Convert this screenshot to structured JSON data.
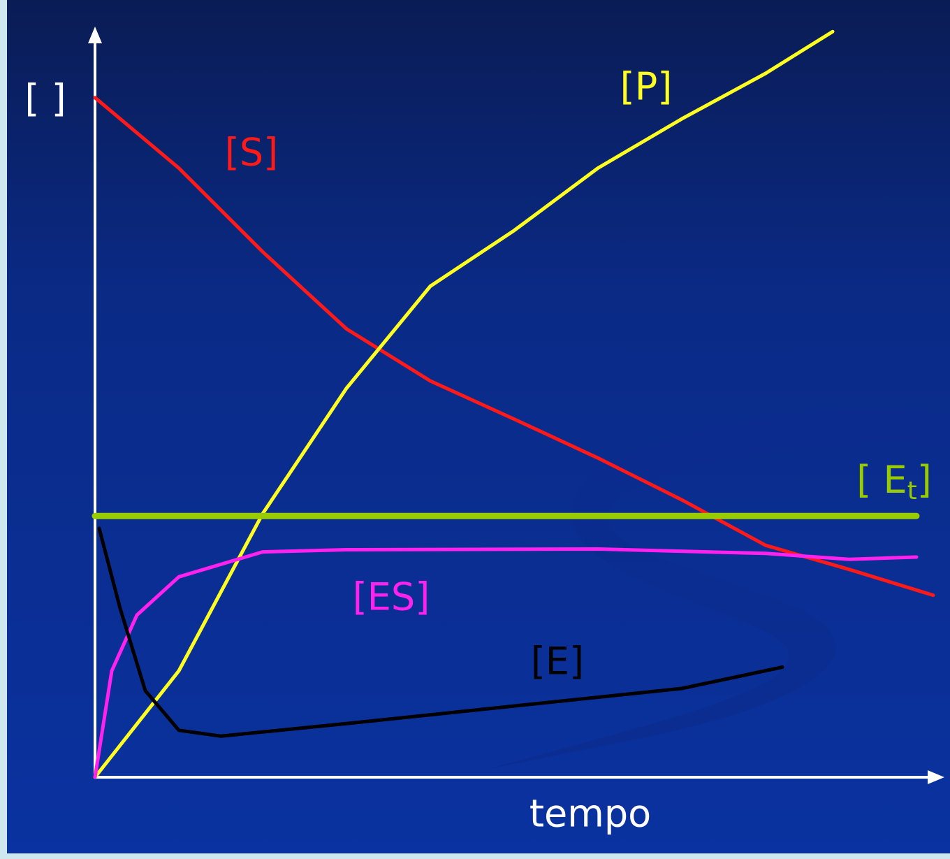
{
  "chart_data": {
    "type": "line",
    "x_label": "tempo",
    "y_label": "[ ]",
    "xlim": [
      0,
      100
    ],
    "ylim": [
      0,
      100
    ],
    "series": [
      {
        "name": "[S]",
        "color": "#ff1a1a",
        "x": [
          0,
          10,
          20,
          30,
          40,
          50,
          60,
          70,
          80,
          90,
          100
        ],
        "values": [
          92.6,
          83,
          71.6,
          61.1,
          54,
          48.8,
          43.5,
          37.8,
          31.6,
          28.3,
          24.8
        ]
      },
      {
        "name": "[P]",
        "color": "#ffff22",
        "x": [
          0,
          10,
          20,
          30,
          40,
          50,
          60,
          70,
          80,
          88
        ],
        "values": [
          0,
          14.5,
          35.9,
          53,
          66.9,
          74.5,
          83,
          89.7,
          95.9,
          101.6
        ]
      },
      {
        "name_parts": [
          "[ E",
          "t",
          "]"
        ],
        "color": "#99cc00",
        "x": [
          0,
          98
        ],
        "values": [
          35.6,
          35.6
        ]
      },
      {
        "name": "[ES]",
        "color": "#ff22ee",
        "x": [
          0,
          2,
          5,
          10,
          20,
          30,
          60,
          80,
          90,
          98
        ],
        "values": [
          0,
          14.5,
          22.1,
          27.3,
          30.7,
          31,
          31.1,
          30.5,
          29.7,
          30
        ]
      },
      {
        "name": "[E]",
        "color": "#000000",
        "x": [
          0.5,
          3,
          6,
          10,
          15,
          30,
          50,
          70,
          82
        ],
        "values": [
          33.9,
          23,
          11.8,
          6.4,
          5.6,
          7.3,
          9.7,
          12.1,
          15
        ]
      }
    ]
  }
}
